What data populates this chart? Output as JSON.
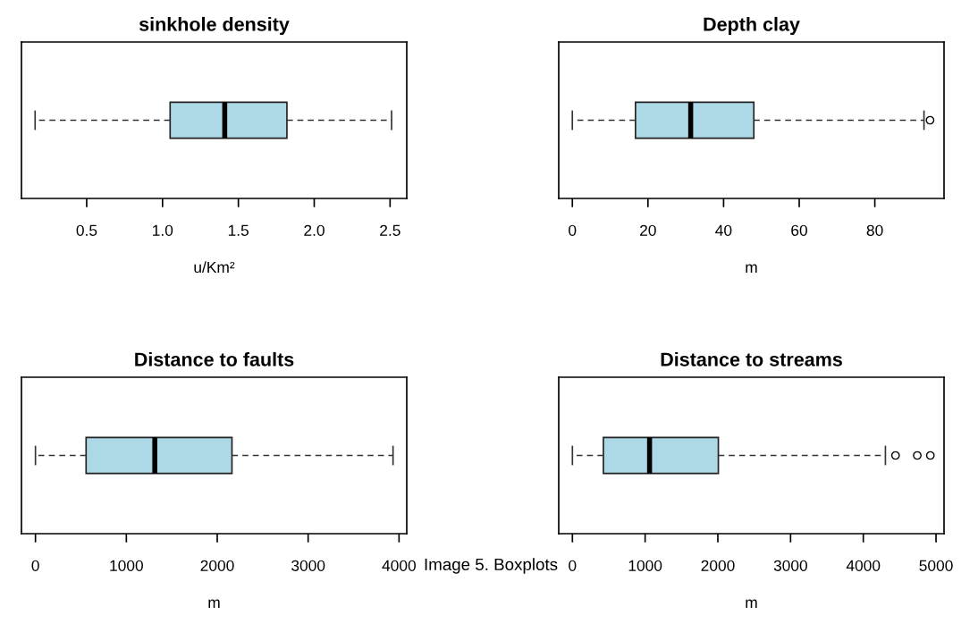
{
  "chart_data": [
    {
      "type": "box",
      "title": "sinkhole density",
      "xlabel": "u/Km²",
      "categories": [
        null
      ],
      "color": "#add8e6",
      "line_style": "dashed",
      "orientation": "horizontal",
      "tick_labels": "x",
      "xlim": [
        0.07,
        2.61
      ],
      "xticks": [
        0.5,
        {
          "value": 1,
          "label": "1.0"
        },
        1.5,
        {
          "value": 2,
          "label": "2.0"
        },
        2.5
      ],
      "boxes": [
        {
          "low": 0.16,
          "q1": 1.05,
          "median": 1.41,
          "q3": 1.82,
          "high": 2.51
        }
      ]
    },
    {
      "type": "box",
      "title": "Depth clay",
      "xlabel": "m",
      "categories": [
        null
      ],
      "color": "#add8e6",
      "line_style": "dashed",
      "orientation": "horizontal",
      "tick_labels": "x",
      "xlim": [
        -3.6,
        98.3
      ],
      "xticks": [
        0,
        20,
        40,
        60,
        80
      ],
      "boxes": [
        {
          "low": 0,
          "q1": 16.7,
          "median": 31.3,
          "q3": 48.0,
          "high": 93.0,
          "outliers": [
            94.6
          ]
        }
      ]
    },
    {
      "type": "box",
      "title": "Distance to faults",
      "xlabel": "m",
      "categories": [
        null
      ],
      "color": "#add8e6",
      "line_style": "dashed",
      "orientation": "horizontal",
      "tick_labels": "x",
      "xlim": [
        -154,
        4085
      ],
      "xticks": [
        0,
        1000,
        2000,
        3000,
        4000
      ],
      "boxes": [
        {
          "low": 0,
          "q1": 557,
          "median": 1313,
          "q3": 2162,
          "high": 3934
        }
      ],
      "annotations": [
        "Image 5. Boxplots"
      ]
    },
    {
      "type": "box",
      "title": "Distance to streams",
      "xlabel": "m",
      "categories": [
        null
      ],
      "color": "#add8e6",
      "line_style": "dashed",
      "orientation": "horizontal",
      "tick_labels": "x",
      "xlim": [
        -188,
        5110
      ],
      "xticks": [
        0,
        1000,
        2000,
        3000,
        4000,
        5000
      ],
      "boxes": [
        {
          "low": 0,
          "q1": 426,
          "median": 1061,
          "q3": 2007,
          "high": 4304,
          "outliers": [
            4443,
            4742,
            4922
          ]
        }
      ]
    }
  ]
}
